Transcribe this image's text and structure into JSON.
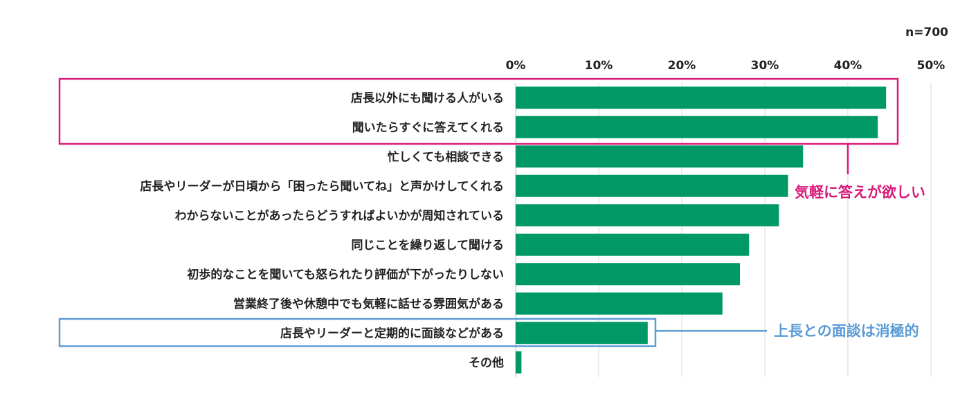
{
  "chart_data": {
    "type": "bar",
    "orientation": "horizontal",
    "sample_note": "n=700",
    "xlim": [
      0,
      50
    ],
    "x_ticks": [
      "0%",
      "10%",
      "20%",
      "30%",
      "40%",
      "50%"
    ],
    "grid": true,
    "bar_color": "#009966",
    "categories": [
      "店長以外にも聞ける人がいる",
      "聞いたらすぐに答えてくれる",
      "忙しくても相談できる",
      "店長やリーダーが日頃から「困ったら聞いてね」と声かけしてくれる",
      "わからないことがあったらどうすればよいかが周知されている",
      "同じことを繰り返して聞ける",
      "初歩的なことを聞いても怒られたり評価が下がったりしない",
      "営業終了後や休憩中でも気軽に話せる雰囲気がある",
      "店長やリーダーと定期的に面談などがある",
      "その他"
    ],
    "values": [
      44.6,
      43.6,
      34.6,
      32.8,
      31.7,
      28.1,
      27.0,
      24.9,
      15.9,
      0.7
    ],
    "annotations": [
      {
        "text": "気軽に答えが欲しい",
        "color": "#d81b7a",
        "category_indices": [
          0,
          1
        ]
      },
      {
        "text": "上長との面談は消極的",
        "color": "#5b9bd5",
        "category_indices": [
          8
        ]
      }
    ]
  }
}
